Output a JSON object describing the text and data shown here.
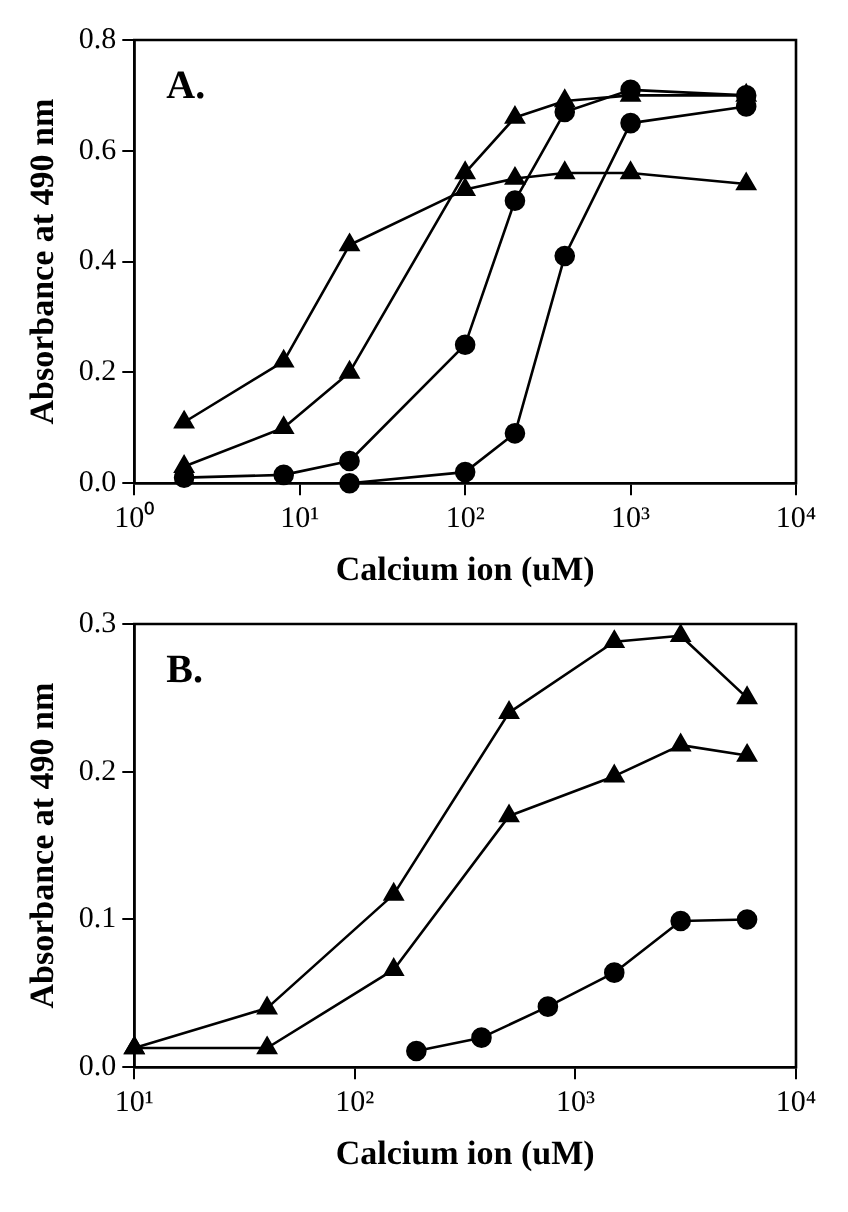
{
  "chart_data": [
    {
      "type": "line",
      "xlabel": "Calcium ion (uM)",
      "ylabel": "Absorbance at 490 nm",
      "annotations": [
        "A."
      ],
      "log": "x",
      "xlim": [
        1,
        10000
      ],
      "xticks": [
        {
          "value": 1,
          "label": "10⁰"
        },
        {
          "value": 10,
          "label": "10¹"
        },
        {
          "value": 100,
          "label": "10²"
        },
        {
          "value": 1000,
          "label": "10³"
        },
        {
          "value": 10000,
          "label": "10⁴"
        }
      ],
      "ylim": [
        0,
        0.8
      ],
      "yticks": [
        {
          "value": 0,
          "label": "0.0"
        },
        {
          "value": 0.2,
          "label": "0.2"
        },
        {
          "value": 0.4,
          "label": "0.4"
        },
        {
          "value": 0.6,
          "label": "0.6"
        },
        {
          "value": 0.8,
          "label": "0.8"
        }
      ],
      "grid": false,
      "legend": false,
      "line_style": "solid",
      "series": [
        {
          "color": "#000000",
          "marker": "triangle",
          "x": [
            2,
            8,
            20,
            100,
            200,
            400,
            1000,
            5000
          ],
          "values": [
            0.11,
            0.22,
            0.43,
            0.53,
            0.55,
            0.56,
            0.56,
            0.54
          ]
        },
        {
          "color": "#000000",
          "marker": "triangle",
          "x": [
            2,
            8,
            20,
            100,
            200,
            400,
            1000,
            5000
          ],
          "values": [
            0.03,
            0.1,
            0.2,
            0.56,
            0.66,
            0.69,
            0.7,
            0.7
          ]
        },
        {
          "color": "#000000",
          "marker": "circle",
          "x": [
            2,
            8,
            20,
            100,
            200,
            400,
            1000,
            5000
          ],
          "values": [
            0.01,
            0.015,
            0.04,
            0.25,
            0.51,
            0.67,
            0.71,
            0.7
          ]
        },
        {
          "color": "#000000",
          "marker": "circle",
          "x": [
            20,
            100,
            200,
            400,
            1000,
            5000
          ],
          "values": [
            0.0,
            0.02,
            0.09,
            0.41,
            0.65,
            0.68
          ]
        }
      ]
    },
    {
      "type": "line",
      "xlabel": "Calcium ion (uM)",
      "ylabel": "Absorbance at 490 nm",
      "annotations": [
        "B."
      ],
      "log": "x",
      "xlim": [
        10,
        10000
      ],
      "xticks": [
        {
          "value": 10,
          "label": "10¹"
        },
        {
          "value": 100,
          "label": "10²"
        },
        {
          "value": 1000,
          "label": "10³"
        },
        {
          "value": 10000,
          "label": "10⁴"
        }
      ],
      "ylim": [
        0,
        0.3
      ],
      "yticks": [
        {
          "value": 0,
          "label": "0.0"
        },
        {
          "value": 0.1,
          "label": "0.1"
        },
        {
          "value": 0.2,
          "label": "0.2"
        },
        {
          "value": 0.3,
          "label": "0.3"
        }
      ],
      "grid": false,
      "legend": false,
      "line_style": "solid",
      "series": [
        {
          "color": "#000000",
          "marker": "triangle",
          "x": [
            10,
            40,
            150,
            500,
            1500,
            3000,
            6000
          ],
          "values": [
            0.013,
            0.04,
            0.117,
            0.24,
            0.288,
            0.292,
            0.25
          ]
        },
        {
          "color": "#000000",
          "marker": "triangle",
          "x": [
            10,
            40,
            150,
            500,
            1500,
            3000,
            6000
          ],
          "values": [
            0.013,
            0.013,
            0.066,
            0.17,
            0.197,
            0.218,
            0.211
          ]
        },
        {
          "color": "#000000",
          "marker": "circle",
          "x": [
            190,
            375,
            750,
            1500,
            3000,
            6000
          ],
          "values": [
            0.011,
            0.02,
            0.041,
            0.064,
            0.099,
            0.1
          ]
        }
      ]
    }
  ]
}
